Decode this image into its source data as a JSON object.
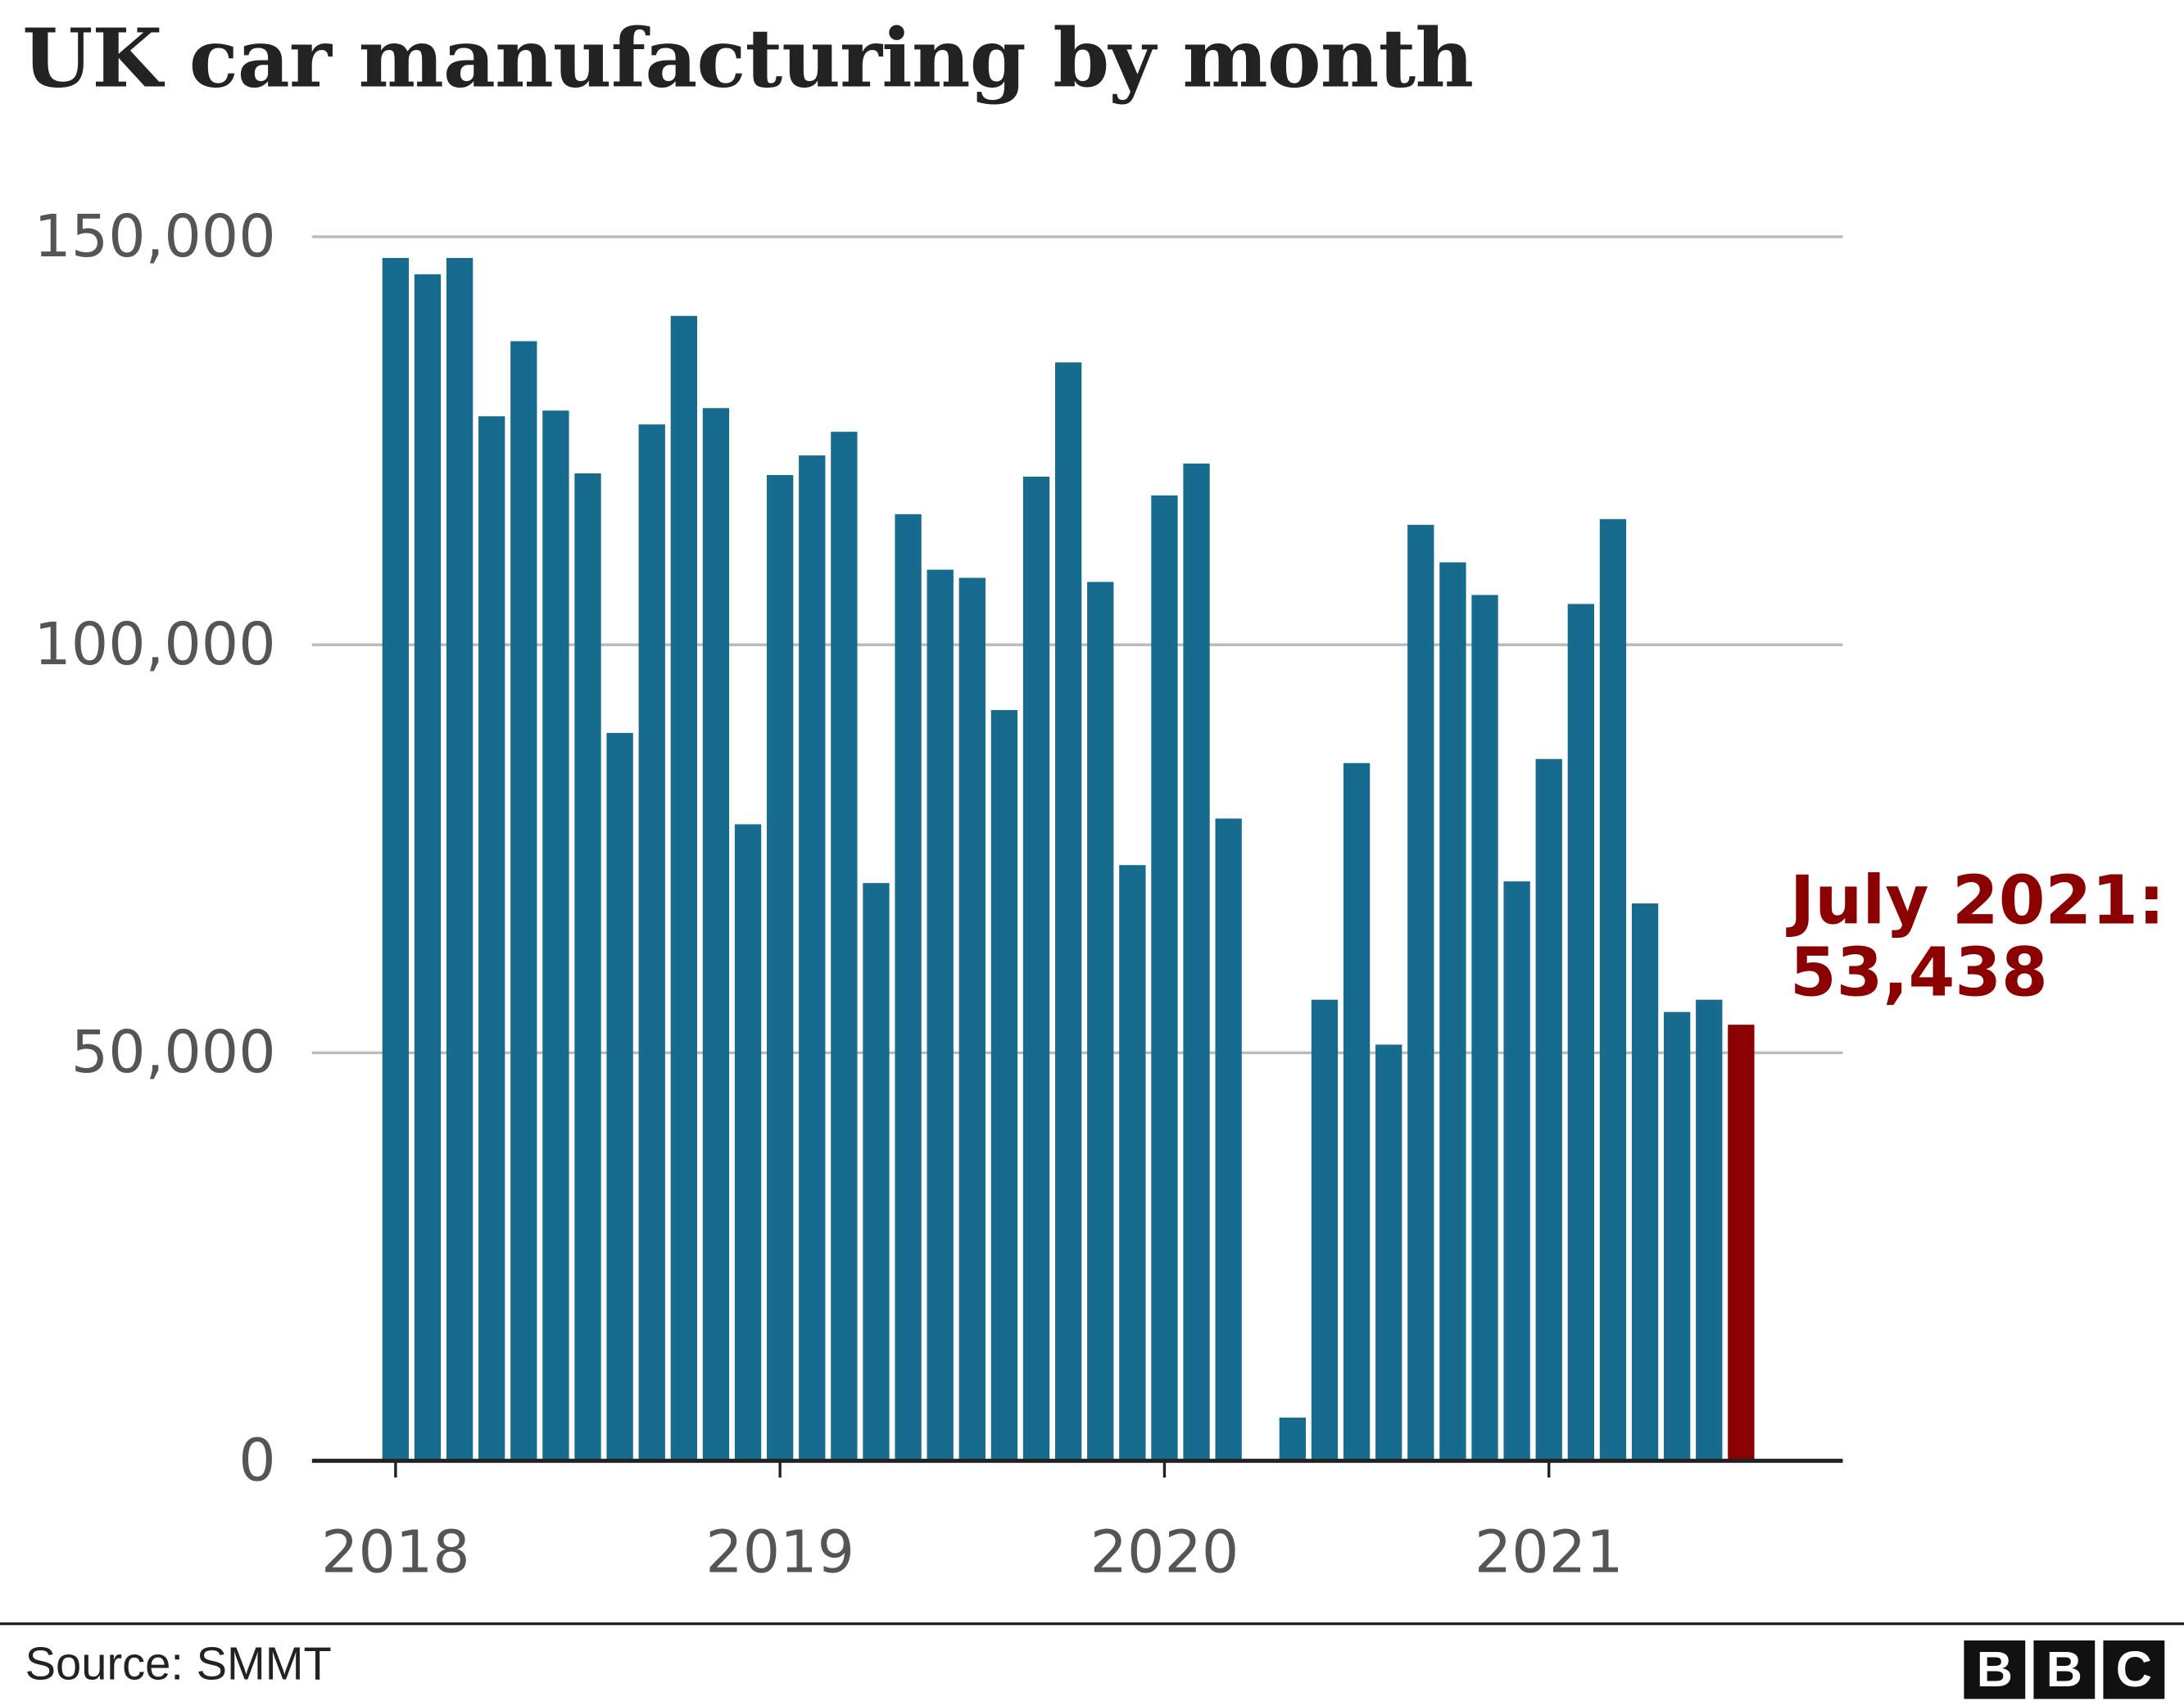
{
  "title": "UK car manufacturing by month",
  "source": "Source: SMMT",
  "logo": [
    "B",
    "B",
    "C"
  ],
  "annotation": {
    "line1": "July 2021:",
    "line2": "53,438"
  },
  "colors": {
    "bar": "#176b8e",
    "highlight": "#8b0000",
    "grid": "#bbbbbb",
    "text": "#555555"
  },
  "chart_data": {
    "type": "bar",
    "title": "UK car manufacturing by month",
    "xlabel": "",
    "ylabel": "",
    "ylim": [
      0,
      150000
    ],
    "yticks": [
      0,
      50000,
      100000,
      150000
    ],
    "ytick_labels": [
      "0",
      "50,000",
      "100,000",
      "150,000"
    ],
    "xtick_labels": [
      "2018",
      "2019",
      "2020",
      "2021"
    ],
    "grid": true,
    "categories": [
      "Jan 2018",
      "Feb 2018",
      "Mar 2018",
      "Apr 2018",
      "May 2018",
      "Jun 2018",
      "Jul 2018",
      "Aug 2018",
      "Sep 2018",
      "Oct 2018",
      "Nov 2018",
      "Dec 2018",
      "Jan 2019",
      "Feb 2019",
      "Mar 2019",
      "Apr 2019",
      "May 2019",
      "Jun 2019",
      "Jul 2019",
      "Aug 2019",
      "Sep 2019",
      "Oct 2019",
      "Nov 2019",
      "Dec 2019",
      "Jan 2020",
      "Feb 2020",
      "Mar 2020",
      "Apr 2020",
      "May 2020",
      "Jun 2020",
      "Jul 2020",
      "Aug 2020",
      "Sep 2020",
      "Oct 2020",
      "Nov 2020",
      "Dec 2020",
      "Jan 2021",
      "Feb 2021",
      "Mar 2021",
      "Apr 2021",
      "May 2021",
      "Jun 2021",
      "Jul 2021"
    ],
    "values": [
      147400,
      145400,
      147400,
      128000,
      137200,
      128700,
      121000,
      89200,
      127000,
      140300,
      129000,
      78000,
      120800,
      123200,
      126100,
      70800,
      116000,
      109200,
      108200,
      92000,
      120600,
      134600,
      107700,
      73000,
      118300,
      122200,
      78700,
      200,
      5300,
      56500,
      85500,
      51000,
      114700,
      110100,
      106100,
      71000,
      86000,
      105000,
      115400,
      68300,
      55000,
      56500,
      53438
    ],
    "highlight_index": 42
  }
}
